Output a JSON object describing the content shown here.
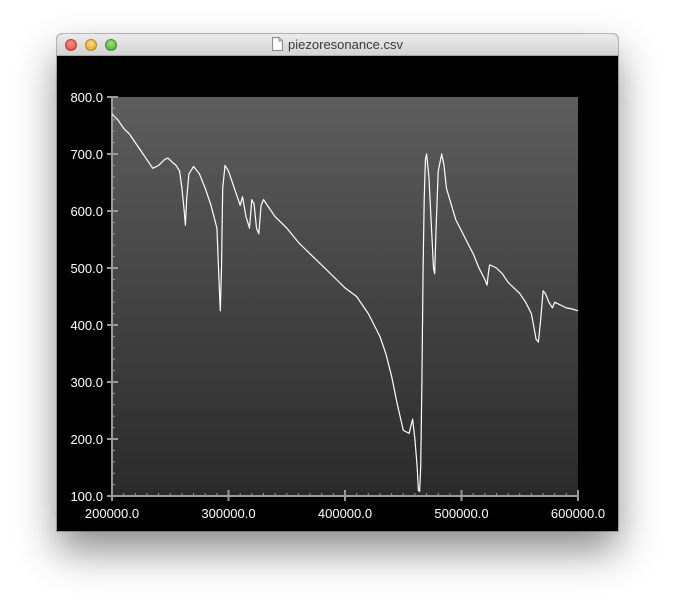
{
  "window": {
    "title": "piezoresonance.csv",
    "icon": "document-icon"
  },
  "chart_data": {
    "type": "line",
    "title": "",
    "xlabel": "",
    "ylabel": "",
    "xlim": [
      200000,
      600000
    ],
    "ylim": [
      100,
      800
    ],
    "xticks": [
      "200000.0",
      "300000.0",
      "400000.0",
      "500000.0",
      "600000.0"
    ],
    "yticks": [
      "100.0",
      "200.0",
      "300.0",
      "400.0",
      "500.0",
      "600.0",
      "700.0",
      "800.0"
    ],
    "grid": false,
    "colors": {
      "line": "#ffffff",
      "plot_top": "#5d5d5d",
      "plot_bottom": "#2a2a2a",
      "background": "#000000"
    },
    "series": [
      {
        "x": [
          200000,
          205000,
          210000,
          215000,
          220000,
          225000,
          230000,
          235000,
          240000,
          245000,
          248000,
          252000,
          255000,
          258000,
          260000,
          262000,
          263000,
          264000,
          266000,
          270000,
          275000,
          280000,
          285000,
          290000,
          292000,
          293000,
          294000,
          295000,
          297000,
          300000,
          305000,
          310000,
          312000,
          315000,
          318000,
          320000,
          322000,
          324000,
          326000,
          328000,
          330000,
          335000,
          340000,
          350000,
          360000,
          370000,
          380000,
          390000,
          400000,
          410000,
          420000,
          430000,
          435000,
          440000,
          445000,
          450000,
          455000,
          458000,
          460000,
          462000,
          463000,
          464000,
          465000,
          466000,
          467000,
          468000,
          469000,
          470000,
          472000,
          474000,
          476000,
          477000,
          478000,
          480000,
          483000,
          485000,
          487000,
          490000,
          495000,
          500000,
          505000,
          510000,
          515000,
          520000,
          522000,
          523000,
          524000,
          525000,
          530000,
          535000,
          540000,
          545000,
          550000,
          555000,
          560000,
          564000,
          566000,
          568000,
          570000,
          572000,
          575000,
          578000,
          580000,
          585000,
          590000,
          595000,
          600000
        ],
        "y": [
          770,
          760,
          745,
          735,
          720,
          705,
          690,
          675,
          680,
          690,
          693,
          685,
          680,
          670,
          640,
          600,
          575,
          620,
          665,
          678,
          665,
          640,
          610,
          570,
          470,
          425,
          500,
          640,
          680,
          670,
          640,
          610,
          625,
          590,
          570,
          620,
          612,
          570,
          560,
          610,
          620,
          605,
          590,
          570,
          545,
          525,
          505,
          485,
          465,
          450,
          420,
          380,
          350,
          310,
          260,
          215,
          210,
          235,
          200,
          150,
          110,
          108,
          150,
          300,
          500,
          620,
          690,
          700,
          660,
          580,
          500,
          490,
          560,
          670,
          700,
          680,
          640,
          620,
          585,
          565,
          545,
          525,
          500,
          480,
          470,
          490,
          505,
          505,
          500,
          490,
          475,
          465,
          455,
          440,
          420,
          375,
          370,
          410,
          460,
          455,
          440,
          430,
          440,
          435,
          430,
          428,
          425
        ]
      }
    ]
  }
}
